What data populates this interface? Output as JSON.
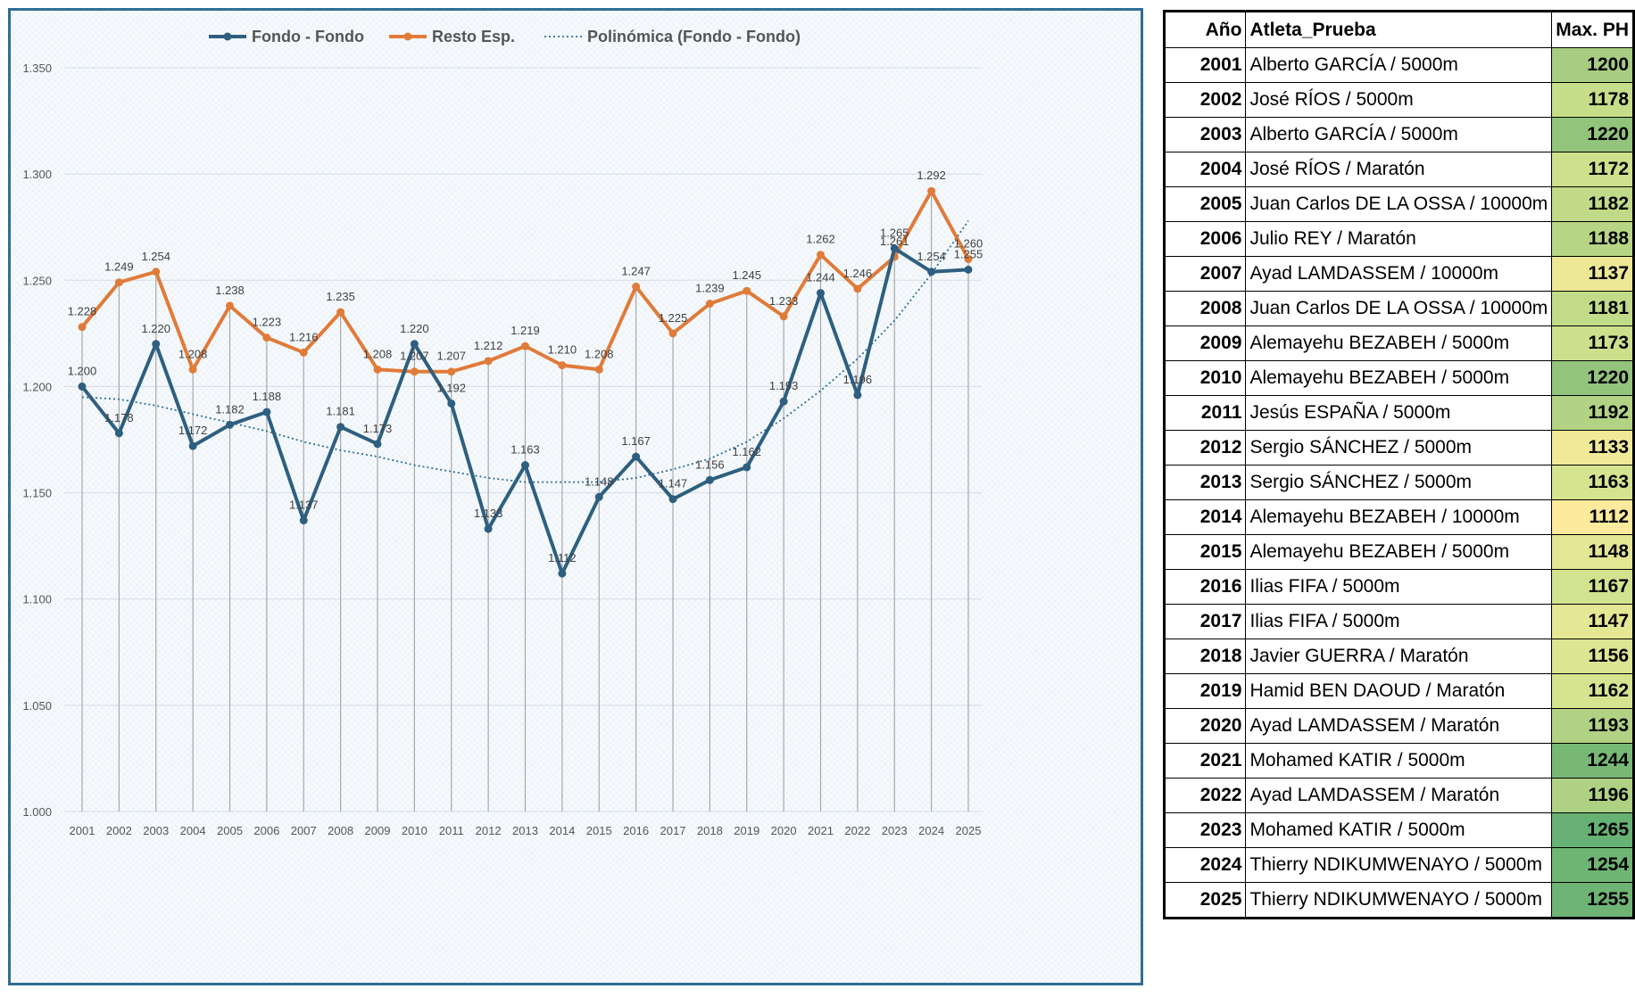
{
  "chart_data": {
    "type": "line",
    "title": "",
    "xlabel": "",
    "ylabel": "",
    "ylim": [
      1000,
      1350
    ],
    "yticks": [
      "1.000",
      "1.050",
      "1.100",
      "1.150",
      "1.200",
      "1.250",
      "1.300",
      "1.350"
    ],
    "grid": true,
    "legend_position": "top",
    "categories": [
      "2001",
      "2002",
      "2003",
      "2004",
      "2005",
      "2006",
      "2007",
      "2008",
      "2009",
      "2010",
      "2011",
      "2012",
      "2013",
      "2014",
      "2015",
      "2016",
      "2017",
      "2018",
      "2019",
      "2020",
      "2021",
      "2022",
      "2023",
      "2024",
      "2025"
    ],
    "series": [
      {
        "name": "Fondo - Fondo",
        "color": "#2e5f80",
        "values": [
          1200,
          1178,
          1220,
          1172,
          1182,
          1188,
          1137,
          1181,
          1173,
          1220,
          1192,
          1133,
          1163,
          1112,
          1148,
          1167,
          1147,
          1156,
          1162,
          1193,
          1244,
          1196,
          1265,
          1254,
          1255
        ],
        "labels": [
          "1.200",
          "1.178",
          "1.220",
          "1.172",
          "1.182",
          "1.188",
          "1.137",
          "1.181",
          "1.173",
          "1.220",
          "1.192",
          "1.133",
          "1.163",
          "1.112",
          "1.148",
          "1.167",
          "1.147",
          "1.156",
          "1.162",
          "1.193",
          "1.244",
          "1.196",
          "1.265",
          "1.254",
          "1.255"
        ]
      },
      {
        "name": "Resto Esp.",
        "color": "#e07b3a",
        "values": [
          1228,
          1249,
          1254,
          1208,
          1238,
          1223,
          1216,
          1235,
          1208,
          1207,
          1207,
          1212,
          1219,
          1210,
          1208,
          1247,
          1225,
          1239,
          1245,
          1233,
          1262,
          1246,
          1261,
          1292,
          1260
        ],
        "labels": [
          "1.228",
          "1.249",
          "1.254",
          "1.208",
          "1.238",
          "1.223",
          "1.216",
          "1.235",
          "1.208",
          "1.207",
          "1.207",
          "1.212",
          "1.219",
          "1.210",
          "1.208",
          "1.247",
          "1.225",
          "1.239",
          "1.245",
          "1.233",
          "1.262",
          "1.246",
          "1.261",
          "1.292",
          "1.260"
        ]
      },
      {
        "name": "Polinómica (Fondo - Fondo)",
        "color": "#2e6e96",
        "style": "dotted",
        "values": [
          1195,
          1194,
          1191,
          1187,
          1183,
          1179,
          1174,
          1170,
          1167,
          1163,
          1160,
          1157,
          1155,
          1155,
          1155,
          1157,
          1161,
          1166,
          1174,
          1185,
          1198,
          1213,
          1231,
          1253,
          1278
        ]
      }
    ]
  },
  "table": {
    "headers": {
      "year": "Año",
      "athlete": "Atleta_Prueba",
      "ph": "Max. PH"
    },
    "rows": [
      {
        "year": "2001",
        "athlete": "Alberto GARCÍA / 5000m",
        "ph": "1200",
        "color": "#a8cc80"
      },
      {
        "year": "2002",
        "athlete": "José RÍOS / 5000m",
        "ph": "1178",
        "color": "#c6dd8a"
      },
      {
        "year": "2003",
        "athlete": "Alberto GARCÍA / 5000m",
        "ph": "1220",
        "color": "#92c47c"
      },
      {
        "year": "2004",
        "athlete": "José RÍOS / Maratón",
        "ph": "1172",
        "color": "#cee08c"
      },
      {
        "year": "2005",
        "athlete": "Juan Carlos DE LA OSSA / 10000m",
        "ph": "1182",
        "color": "#c0da88"
      },
      {
        "year": "2006",
        "athlete": "Julio REY / Maratón",
        "ph": "1188",
        "color": "#b7d585"
      },
      {
        "year": "2007",
        "athlete": "Ayad LAMDASSEM / 10000m",
        "ph": "1137",
        "color": "#ece896"
      },
      {
        "year": "2008",
        "athlete": "Juan Carlos DE LA OSSA / 10000m",
        "ph": "1181",
        "color": "#c2db89"
      },
      {
        "year": "2009",
        "athlete": "Alemayehu BEZABEH / 5000m",
        "ph": "1173",
        "color": "#cce08c"
      },
      {
        "year": "2010",
        "athlete": "Alemayehu BEZABEH / 5000m",
        "ph": "1220",
        "color": "#92c47c"
      },
      {
        "year": "2011",
        "athlete": "Jesús ESPAÑA / 5000m",
        "ph": "1192",
        "color": "#b2d384"
      },
      {
        "year": "2012",
        "athlete": "Sergio SÁNCHEZ / 5000m",
        "ph": "1133",
        "color": "#f0e997"
      },
      {
        "year": "2013",
        "athlete": "Sergio SÁNCHEZ / 5000m",
        "ph": "1163",
        "color": "#d6e48f"
      },
      {
        "year": "2014",
        "athlete": "Alemayehu BEZABEH / 10000m",
        "ph": "1112",
        "color": "#fdea9c"
      },
      {
        "year": "2015",
        "athlete": "Alemayehu BEZABEH / 5000m",
        "ph": "1148",
        "color": "#e3e693"
      },
      {
        "year": "2016",
        "athlete": "Ilias FIFA / 5000m",
        "ph": "1167",
        "color": "#d2e28e"
      },
      {
        "year": "2017",
        "athlete": "Ilias FIFA / 5000m",
        "ph": "1147",
        "color": "#e4e793"
      },
      {
        "year": "2018",
        "athlete": "Javier GUERRA / Maratón",
        "ph": "1156",
        "color": "#dce591"
      },
      {
        "year": "2019",
        "athlete": "Hamid BEN DAOUD / Maratón",
        "ph": "1162",
        "color": "#d7e48f"
      },
      {
        "year": "2020",
        "athlete": "Ayad LAMDASSEM / Maratón",
        "ph": "1193",
        "color": "#b1d284"
      },
      {
        "year": "2021",
        "athlete": "Mohamed KATIR / 5000m",
        "ph": "1244",
        "color": "#78b876"
      },
      {
        "year": "2022",
        "athlete": "Ayad LAMDASSEM / Maratón",
        "ph": "1196",
        "color": "#aed183"
      },
      {
        "year": "2023",
        "athlete": "Mohamed KATIR / 5000m",
        "ph": "1265",
        "color": "#66b173"
      },
      {
        "year": "2024",
        "athlete": "Thierry NDIKUMWENAYO / 5000m",
        "ph": "1254",
        "color": "#6fb574"
      },
      {
        "year": "2025",
        "athlete": "Thierry NDIKUMWENAYO / 5000m",
        "ph": "1255",
        "color": "#6eb474"
      }
    ]
  }
}
